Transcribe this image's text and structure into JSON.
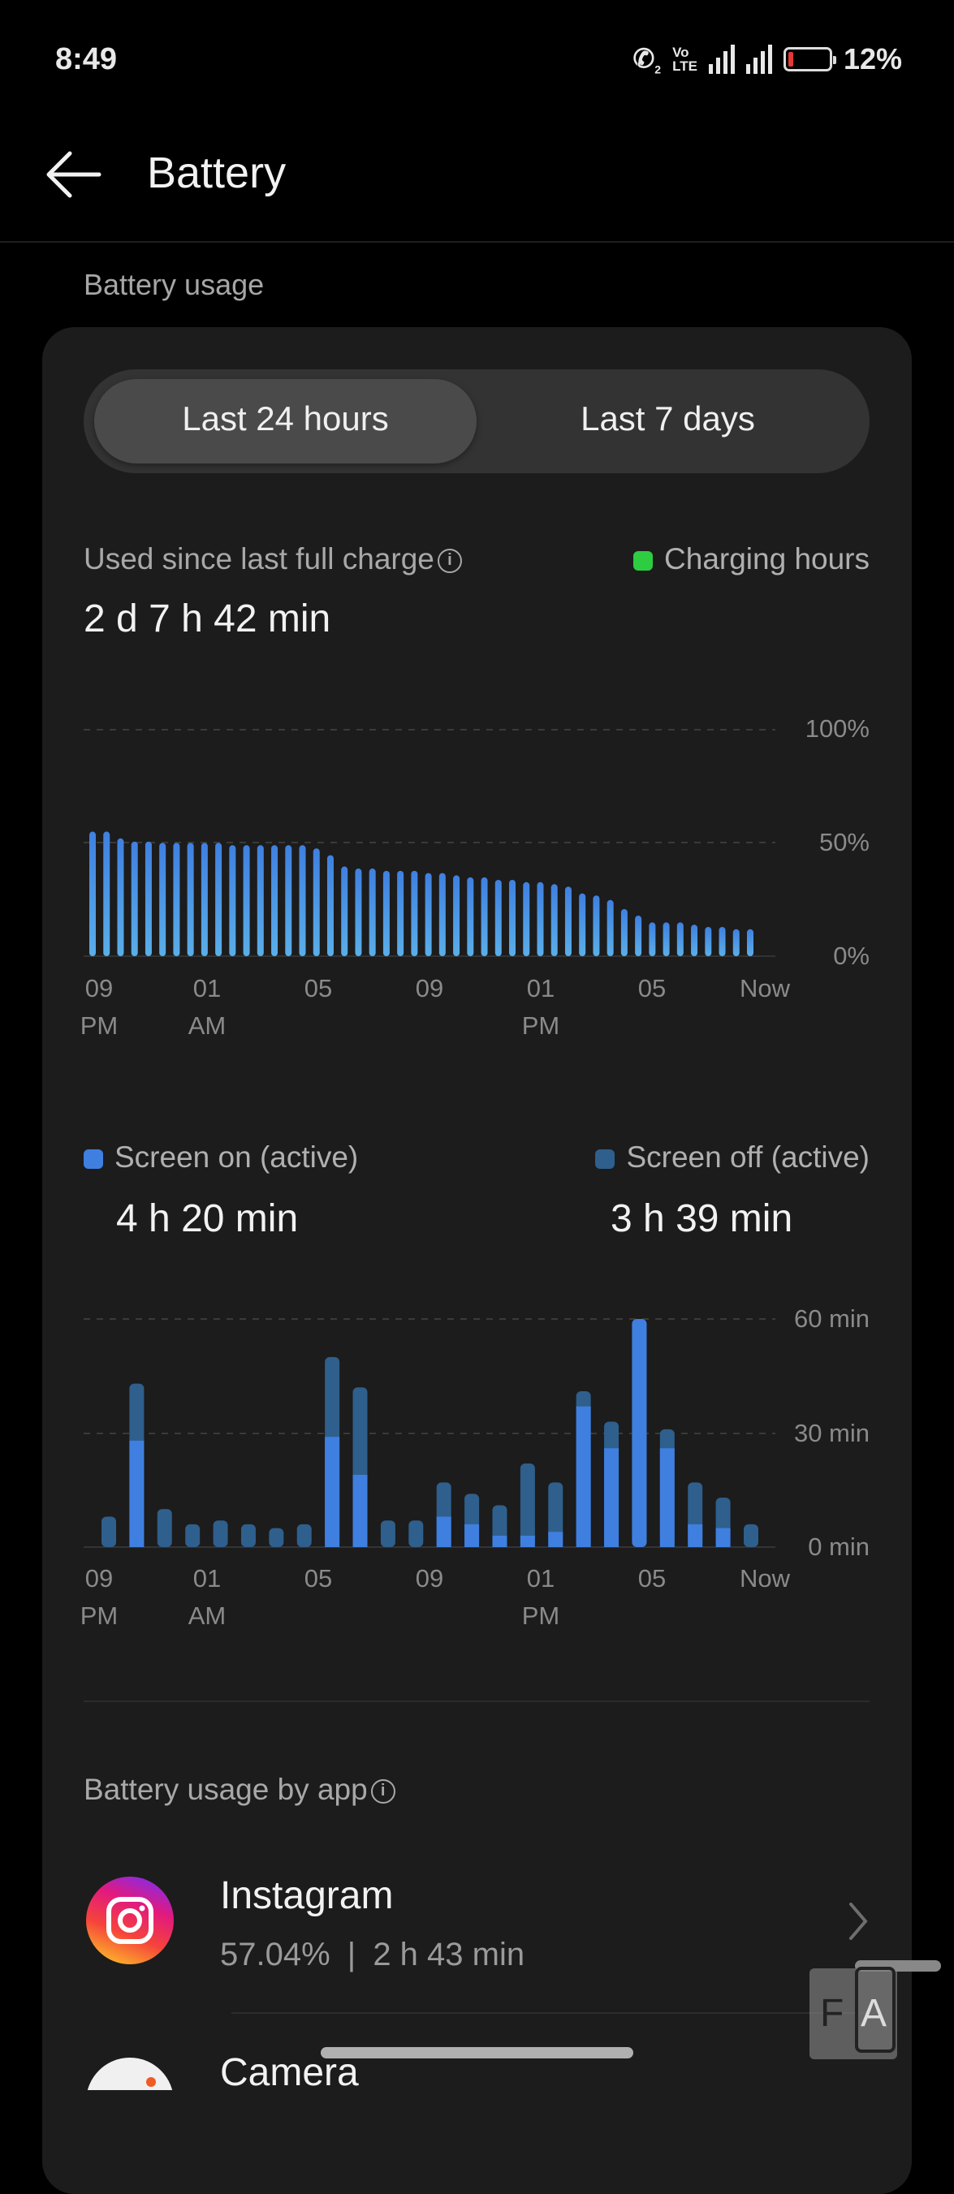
{
  "status_bar": {
    "time": "8:49",
    "battery_percent": "12%",
    "battery_level": 12,
    "volte_line1": "Vo",
    "volte_line2": "LTE",
    "call_sim": "2"
  },
  "header": {
    "title": "Battery"
  },
  "section_title": "Battery usage",
  "tabs": [
    {
      "label": "Last 24 hours",
      "selected": true
    },
    {
      "label": "Last 7 days",
      "selected": false
    }
  ],
  "summary": {
    "label": "Used since last full charge",
    "value": "2 d 7 h 42 min",
    "charging_legend": "Charging hours"
  },
  "screen_legend": {
    "on_label": "Screen on (active)",
    "on_value": "4 h 20 min",
    "off_label": "Screen off (active)",
    "off_value": "3 h 39 min"
  },
  "app_section": {
    "title": "Battery usage by app"
  },
  "apps": [
    {
      "name": "Instagram",
      "percent": "57.04%",
      "separator": "|",
      "time": "2 h 43 min"
    },
    {
      "name": "Camera"
    }
  ],
  "overlay": {
    "left": "F",
    "right": "A"
  },
  "colors": {
    "screen_on": "#3f7fe0",
    "screen_off": "#2f5f8c",
    "charging": "#2ecc40",
    "level_top": "#3f80e0",
    "level_bottom": "#5aaee8"
  },
  "chart_data": [
    {
      "type": "bar",
      "title": "Battery level",
      "ylim": [
        0,
        100
      ],
      "y_ticks": [
        "100%",
        "50%",
        "0%"
      ],
      "x_ticks": [
        [
          "09",
          "PM"
        ],
        [
          "01",
          "AM"
        ],
        [
          "05",
          ""
        ],
        [
          "09",
          ""
        ],
        [
          "01",
          "PM"
        ],
        [
          "05",
          ""
        ],
        [
          "Now",
          ""
        ]
      ],
      "values": [
        55,
        55,
        52,
        50.6,
        50.6,
        50,
        50,
        50,
        50,
        50,
        49,
        49,
        49,
        49,
        49,
        49,
        47.6,
        44.6,
        39.6,
        38.7,
        38.7,
        37.7,
        37.7,
        37.7,
        36.7,
        36.7,
        35.7,
        34.8,
        34.8,
        33.7,
        33.7,
        32.7,
        32.7,
        31.8,
        30.7,
        27.7,
        26.8,
        24.8,
        20.8,
        17.9,
        14.9,
        14.9,
        14.9,
        13.9,
        12.9,
        12.9,
        11.9,
        11.9
      ]
    },
    {
      "type": "bar",
      "title": "Screen time",
      "ylim": [
        0,
        60
      ],
      "y_ticks": [
        "60 min",
        "30 min",
        "0 min"
      ],
      "x_ticks": [
        [
          "09",
          "PM"
        ],
        [
          "01",
          "AM"
        ],
        [
          "05",
          ""
        ],
        [
          "09",
          ""
        ],
        [
          "01",
          "PM"
        ],
        [
          "05",
          ""
        ],
        [
          "Now",
          ""
        ]
      ],
      "series": [
        {
          "name": "Screen on (active)",
          "values": [
            0,
            28,
            0,
            0,
            0,
            0,
            0,
            0,
            29,
            19,
            0,
            0,
            8,
            6,
            3,
            3,
            4,
            37,
            26,
            60,
            26,
            6,
            5,
            0
          ]
        },
        {
          "name": "Screen off (active)",
          "values": [
            8,
            15,
            10,
            6,
            7,
            6,
            5,
            6,
            21,
            23,
            7,
            7,
            9,
            8,
            8,
            19,
            13,
            4,
            7,
            0,
            5,
            11,
            8,
            6
          ]
        }
      ]
    }
  ]
}
